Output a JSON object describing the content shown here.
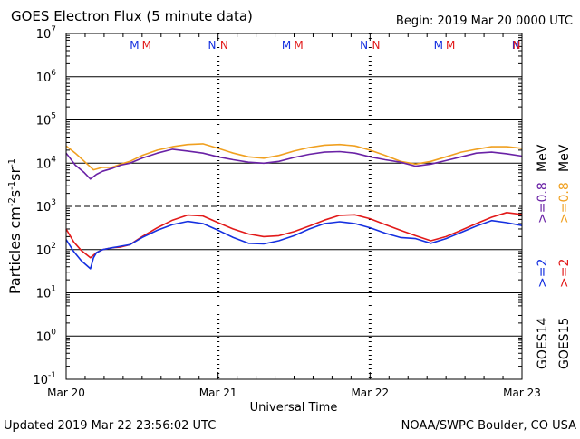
{
  "colors": {
    "background": "#ffffff",
    "axis": "#000000",
    "goes14_e2": "#1530e0",
    "goes14_e08": "#6a22a6",
    "goes15_e2": "#e21a1a",
    "goes15_e08": "#f0a020",
    "label_blue": "#1530e0",
    "label_red": "#e21a1a"
  },
  "header": {
    "title": "GOES Electron Flux (5 minute data)",
    "begin": "Begin: 2019 Mar 20 0000 UTC"
  },
  "footer": {
    "updated": "Updated 2019 Mar 22 23:56:02 UTC",
    "credit": "NOAA/SWPC Boulder, CO USA"
  },
  "chart_data": {
    "type": "line",
    "title": "GOES Electron Flux (5 minute data)",
    "xlabel": "Universal Time",
    "ylabel": "Particles cm-2s-1sr-1",
    "y_scale": "log",
    "ylim": [
      0.1,
      10000000
    ],
    "xlim": [
      0,
      3
    ],
    "x_unit": "days since 2019 Mar 20 00:00 UTC",
    "x_ticks": [
      {
        "x": 0,
        "label": "Mar 20"
      },
      {
        "x": 1,
        "label": "Mar 21"
      },
      {
        "x": 2,
        "label": "Mar 22"
      },
      {
        "x": 3,
        "label": "Mar 23"
      }
    ],
    "y_ticks": [
      {
        "base": "10",
        "exp": "-1",
        "value": 0.1
      },
      {
        "base": "10",
        "exp": "0",
        "value": 1
      },
      {
        "base": "10",
        "exp": "1",
        "value": 10
      },
      {
        "base": "10",
        "exp": "2",
        "value": 100
      },
      {
        "base": "10",
        "exp": "3",
        "value": 1000
      },
      {
        "base": "10",
        "exp": "4",
        "value": 10000
      },
      {
        "base": "10",
        "exp": "5",
        "value": 100000
      },
      {
        "base": "10",
        "exp": "6",
        "value": 1000000
      },
      {
        "base": "10",
        "exp": "7",
        "value": 10000000
      }
    ],
    "grid": "horizontal lines at each decade",
    "threshold_line": {
      "value": 1000,
      "style": "dashed"
    },
    "markers": [
      {
        "x": 0.45,
        "label": "M",
        "color": "#1530e0"
      },
      {
        "x": 0.53,
        "label": "M",
        "color": "#e21a1a"
      },
      {
        "x": 0.96,
        "label": "N",
        "color": "#1530e0"
      },
      {
        "x": 1.04,
        "label": "N",
        "color": "#e21a1a"
      },
      {
        "x": 1.45,
        "label": "M",
        "color": "#1530e0"
      },
      {
        "x": 1.53,
        "label": "M",
        "color": "#e21a1a"
      },
      {
        "x": 1.96,
        "label": "N",
        "color": "#1530e0"
      },
      {
        "x": 2.04,
        "label": "N",
        "color": "#e21a1a"
      },
      {
        "x": 2.45,
        "label": "M",
        "color": "#1530e0"
      },
      {
        "x": 2.53,
        "label": "M",
        "color": "#e21a1a"
      },
      {
        "x": 2.96,
        "label": "N",
        "color": "#1530e0"
      },
      {
        "x": 3.04,
        "label": "N",
        "color": "#e21a1a"
      }
    ],
    "series": [
      {
        "name": "GOES15 >=0.8 MeV",
        "color": "#f0a020",
        "x": [
          0,
          0.06,
          0.12,
          0.18,
          0.24,
          0.3,
          0.36,
          0.42,
          0.5,
          0.6,
          0.7,
          0.8,
          0.9,
          1.0,
          1.1,
          1.2,
          1.3,
          1.4,
          1.5,
          1.6,
          1.7,
          1.8,
          1.9,
          2.0,
          2.1,
          2.2,
          2.3,
          2.4,
          2.5,
          2.6,
          2.7,
          2.8,
          2.9,
          3.0
        ],
        "values": [
          25000,
          17000,
          11000,
          7000,
          8000,
          8000,
          9500,
          11000,
          15000,
          20000,
          24000,
          27000,
          28000,
          22000,
          17000,
          14000,
          13000,
          15000,
          19000,
          23000,
          26000,
          27000,
          25000,
          20000,
          15000,
          11000,
          9500,
          11000,
          14000,
          18000,
          21000,
          24000,
          24000,
          22000
        ]
      },
      {
        "name": "GOES14 >=0.8 MeV",
        "color": "#6a22a6",
        "x": [
          0,
          0.06,
          0.12,
          0.16,
          0.2,
          0.24,
          0.3,
          0.36,
          0.42,
          0.5,
          0.6,
          0.7,
          0.8,
          0.9,
          1.0,
          1.1,
          1.2,
          1.3,
          1.4,
          1.5,
          1.6,
          1.7,
          1.8,
          1.9,
          2.0,
          2.1,
          2.2,
          2.3,
          2.4,
          2.5,
          2.6,
          2.7,
          2.8,
          2.9,
          3.0
        ],
        "values": [
          17000,
          9000,
          6000,
          4300,
          5500,
          6500,
          7500,
          9000,
          10000,
          13000,
          17000,
          21000,
          19000,
          17000,
          14000,
          12000,
          10500,
          10000,
          11000,
          13500,
          16000,
          18000,
          18500,
          17000,
          14000,
          12000,
          10500,
          8500,
          9500,
          11500,
          14000,
          17000,
          18000,
          16500,
          14500
        ]
      },
      {
        "name": "GOES15 >=2 MeV",
        "color": "#e21a1a",
        "x": [
          0,
          0.05,
          0.1,
          0.16,
          0.2,
          0.24,
          0.3,
          0.36,
          0.42,
          0.5,
          0.6,
          0.7,
          0.8,
          0.9,
          1.0,
          1.1,
          1.2,
          1.3,
          1.4,
          1.5,
          1.6,
          1.7,
          1.8,
          1.9,
          2.0,
          2.1,
          2.2,
          2.3,
          2.4,
          2.5,
          2.6,
          2.7,
          2.8,
          2.9,
          3.0
        ],
        "values": [
          300,
          150,
          95,
          65,
          85,
          100,
          110,
          115,
          130,
          200,
          320,
          480,
          630,
          600,
          420,
          300,
          230,
          200,
          210,
          260,
          350,
          480,
          620,
          640,
          520,
          380,
          280,
          210,
          160,
          200,
          280,
          400,
          560,
          720,
          650
        ]
      },
      {
        "name": "GOES14 >=2 MeV",
        "color": "#1530e0",
        "x": [
          0,
          0.05,
          0.1,
          0.16,
          0.18,
          0.2,
          0.24,
          0.3,
          0.36,
          0.42,
          0.5,
          0.6,
          0.7,
          0.8,
          0.9,
          1.0,
          1.1,
          1.2,
          1.3,
          1.4,
          1.5,
          1.6,
          1.7,
          1.8,
          1.9,
          2.0,
          2.1,
          2.2,
          2.3,
          2.4,
          2.5,
          2.6,
          2.7,
          2.8,
          2.9,
          3.0
        ],
        "values": [
          170,
          90,
          55,
          36,
          65,
          85,
          100,
          110,
          120,
          130,
          190,
          280,
          380,
          450,
          400,
          280,
          190,
          140,
          135,
          160,
          210,
          300,
          400,
          440,
          400,
          320,
          240,
          190,
          180,
          140,
          180,
          250,
          350,
          470,
          420,
          360
        ]
      }
    ]
  },
  "side_labels": [
    {
      "text": "GOES14",
      "color": "#000000",
      "column": 0,
      "anchor": "bottom"
    },
    {
      "text": ">=2",
      "color": "#1530e0",
      "column": 0,
      "anchor": "middle"
    },
    {
      "text": ">=0.8",
      "color": "#6a22a6",
      "column": 0,
      "anchor": "upper"
    },
    {
      "text": "MeV",
      "color": "#000000",
      "column": 0,
      "anchor": "top"
    },
    {
      "text": "GOES15",
      "color": "#000000",
      "column": 1,
      "anchor": "bottom"
    },
    {
      "text": ">=2",
      "color": "#e21a1a",
      "column": 1,
      "anchor": "middle"
    },
    {
      "text": ">=0.8",
      "color": "#f0a020",
      "column": 1,
      "anchor": "upper"
    },
    {
      "text": "MeV",
      "color": "#000000",
      "column": 1,
      "anchor": "top"
    }
  ]
}
